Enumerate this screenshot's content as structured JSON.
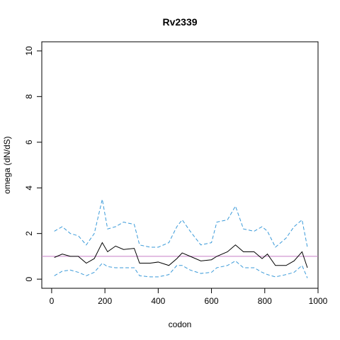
{
  "chart_data": {
    "type": "line",
    "title": "Rv2339",
    "x_label": "codon",
    "y_label": "omega (dN/dS)",
    "x": [
      10,
      40,
      70,
      100,
      130,
      160,
      190,
      210,
      240,
      270,
      310,
      330,
      370,
      400,
      440,
      470,
      490,
      520,
      560,
      600,
      620,
      660,
      690,
      720,
      760,
      790,
      810,
      840,
      880,
      910,
      940,
      960
    ],
    "series": [
      {
        "color": "#000000",
        "dash": false,
        "values": [
          0.95,
          1.1,
          1.0,
          1.0,
          0.7,
          0.9,
          1.6,
          1.2,
          1.45,
          1.3,
          1.35,
          0.7,
          0.7,
          0.75,
          0.6,
          0.9,
          1.15,
          1.0,
          0.8,
          0.85,
          1.0,
          1.2,
          1.5,
          1.2,
          1.2,
          0.9,
          1.1,
          0.6,
          0.6,
          0.8,
          1.2,
          0.5
        ]
      },
      {
        "color": "#3a9ad9",
        "dash": true,
        "values": [
          2.1,
          2.3,
          2.0,
          1.9,
          1.5,
          2.0,
          3.5,
          2.2,
          2.3,
          2.5,
          2.4,
          1.5,
          1.4,
          1.4,
          1.6,
          2.3,
          2.6,
          2.1,
          1.5,
          1.6,
          2.5,
          2.6,
          3.2,
          2.2,
          2.1,
          2.3,
          2.1,
          1.4,
          1.8,
          2.3,
          2.6,
          1.4
        ]
      },
      {
        "color": "#3a9ad9",
        "dash": true,
        "values": [
          0.15,
          0.35,
          0.4,
          0.3,
          0.15,
          0.3,
          0.7,
          0.55,
          0.5,
          0.5,
          0.5,
          0.15,
          0.1,
          0.1,
          0.2,
          0.6,
          0.6,
          0.4,
          0.25,
          0.3,
          0.5,
          0.6,
          0.8,
          0.5,
          0.5,
          0.3,
          0.2,
          0.1,
          0.2,
          0.3,
          0.6,
          0.05
        ]
      }
    ],
    "hline": 1,
    "hline_color": "#c77fc7",
    "xlim": [
      -37,
      1000
    ],
    "ylim": [
      -0.4,
      10.4
    ],
    "xticks": [
      0,
      200,
      400,
      600,
      800,
      1000
    ],
    "yticks": [
      0,
      2,
      4,
      6,
      8,
      10
    ]
  }
}
